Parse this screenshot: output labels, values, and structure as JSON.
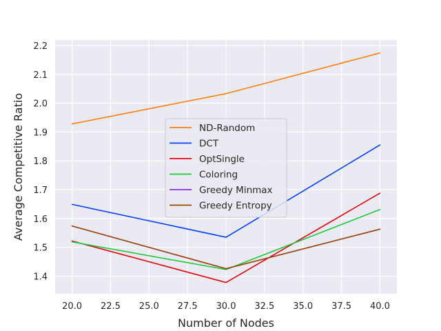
{
  "chart_data": {
    "type": "line",
    "title": "",
    "xlabel": "Number of Nodes",
    "ylabel": "Average Competitive Ratio",
    "xlim": [
      18.9,
      41.1
    ],
    "ylim": [
      1.339,
      2.219
    ],
    "x": [
      20,
      30,
      40
    ],
    "x_ticks": [
      20.0,
      22.5,
      25.0,
      27.5,
      30.0,
      32.5,
      35.0,
      37.5,
      40.0
    ],
    "x_tick_labels": [
      "20.0",
      "22.5",
      "25.0",
      "27.5",
      "30.0",
      "32.5",
      "35.0",
      "37.5",
      "40.0"
    ],
    "y_ticks": [
      1.4,
      1.5,
      1.6,
      1.7,
      1.8,
      1.9,
      2.0,
      2.1,
      2.2
    ],
    "y_tick_labels": [
      "1.4",
      "1.5",
      "1.6",
      "1.7",
      "1.8",
      "1.9",
      "2.0",
      "2.1",
      "2.2"
    ],
    "grid": true,
    "legend_position": "center",
    "series": [
      {
        "name": "ND-Random",
        "color": "#ff7f0e",
        "values": [
          1.928,
          2.033,
          2.174
        ]
      },
      {
        "name": "DCT",
        "color": "#023eff",
        "values": [
          1.649,
          1.535,
          1.855
        ]
      },
      {
        "name": "OptSingle",
        "color": "#e8000b",
        "values": [
          1.522,
          1.378,
          1.688
        ]
      },
      {
        "name": "Coloring",
        "color": "#1ac938",
        "values": [
          1.519,
          1.423,
          1.631
        ]
      },
      {
        "name": "Greedy Minmax",
        "color": "#8b2be2",
        "values": [
          1.574,
          1.426,
          1.563
        ]
      },
      {
        "name": "Greedy Entropy",
        "color": "#9f4800",
        "values": [
          1.574,
          1.426,
          1.563
        ]
      }
    ]
  }
}
